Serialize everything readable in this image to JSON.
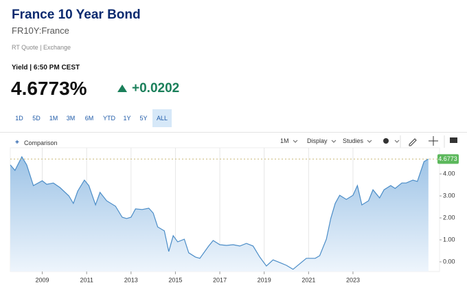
{
  "header": {
    "title": "France 10 Year Bond",
    "symbol": "FR10Y:France",
    "source": "RT Quote | Exchange"
  },
  "quote": {
    "label": "Yield | 6:50 PM CEST",
    "price": "4.6773%",
    "change": "+0.0202"
  },
  "ranges": [
    "1D",
    "5D",
    "1M",
    "3M",
    "6M",
    "YTD",
    "1Y",
    "5Y",
    "ALL"
  ],
  "toolbar": {
    "comparison": "Comparison",
    "interval": "1M",
    "display": "Display",
    "studies": "Studies"
  },
  "chart_data": {
    "type": "area",
    "color": "#4a8cc7",
    "x": [
      2007.56,
      2007.77,
      2008.08,
      2008.3,
      2008.6,
      2009.0,
      2009.2,
      2009.5,
      2009.8,
      2010.2,
      2010.4,
      2010.6,
      2010.9,
      2011.1,
      2011.4,
      2011.6,
      2011.9,
      2012.3,
      2012.6,
      2012.8,
      2013.0,
      2013.2,
      2013.5,
      2013.8,
      2014.0,
      2014.2,
      2014.5,
      2014.7,
      2014.9,
      2015.1,
      2015.4,
      2015.6,
      2015.9,
      2016.1,
      2016.5,
      2016.7,
      2017.0,
      2017.3,
      2017.6,
      2017.9,
      2018.2,
      2018.5,
      2018.8,
      2019.1,
      2019.4,
      2019.7,
      2020.0,
      2020.3,
      2020.6,
      2020.9,
      2021.3,
      2021.5,
      2021.8,
      2022.0,
      2022.2,
      2022.4,
      2022.7,
      2023.0,
      2023.2,
      2023.4,
      2023.7,
      2023.9,
      2024.2,
      2024.4,
      2024.7,
      2024.9,
      2025.2,
      2025.4,
      2025.7,
      2025.9,
      2026.2,
      2026.4
    ],
    "values": [
      4.41,
      4.16,
      4.78,
      4.41,
      3.47,
      3.69,
      3.53,
      3.59,
      3.38,
      3.0,
      2.66,
      3.22,
      3.72,
      3.47,
      2.59,
      3.16,
      2.78,
      2.53,
      2.03,
      1.97,
      2.03,
      2.41,
      2.38,
      2.44,
      2.22,
      1.59,
      1.41,
      0.47,
      1.19,
      0.91,
      1.03,
      0.41,
      0.22,
      0.16,
      0.72,
      0.97,
      0.78,
      0.75,
      0.78,
      0.72,
      0.84,
      0.72,
      0.22,
      -0.19,
      0.09,
      -0.03,
      -0.16,
      -0.34,
      -0.09,
      0.16,
      0.16,
      0.28,
      1.03,
      1.97,
      2.66,
      3.03,
      2.84,
      3.03,
      3.47,
      2.59,
      2.78,
      3.28,
      2.91,
      3.28,
      3.47,
      3.34,
      3.59,
      3.59,
      3.72,
      3.66,
      4.56,
      4.6773
    ],
    "last_value": 4.6773,
    "xlim": [
      2007.56,
      2026.9
    ],
    "xticks": [
      2009,
      2011,
      2013,
      2015,
      2017,
      2019,
      2021,
      2023
    ],
    "ylim": [
      -0.44,
      5.19
    ],
    "yticks": [
      {
        "value": 0,
        "label": "0.00"
      },
      {
        "value": 1,
        "label": "1.00"
      },
      {
        "value": 2,
        "label": "2.00"
      },
      {
        "value": 3,
        "label": "3.00"
      },
      {
        "value": 4,
        "label": "4.00"
      }
    ],
    "grid": true
  }
}
